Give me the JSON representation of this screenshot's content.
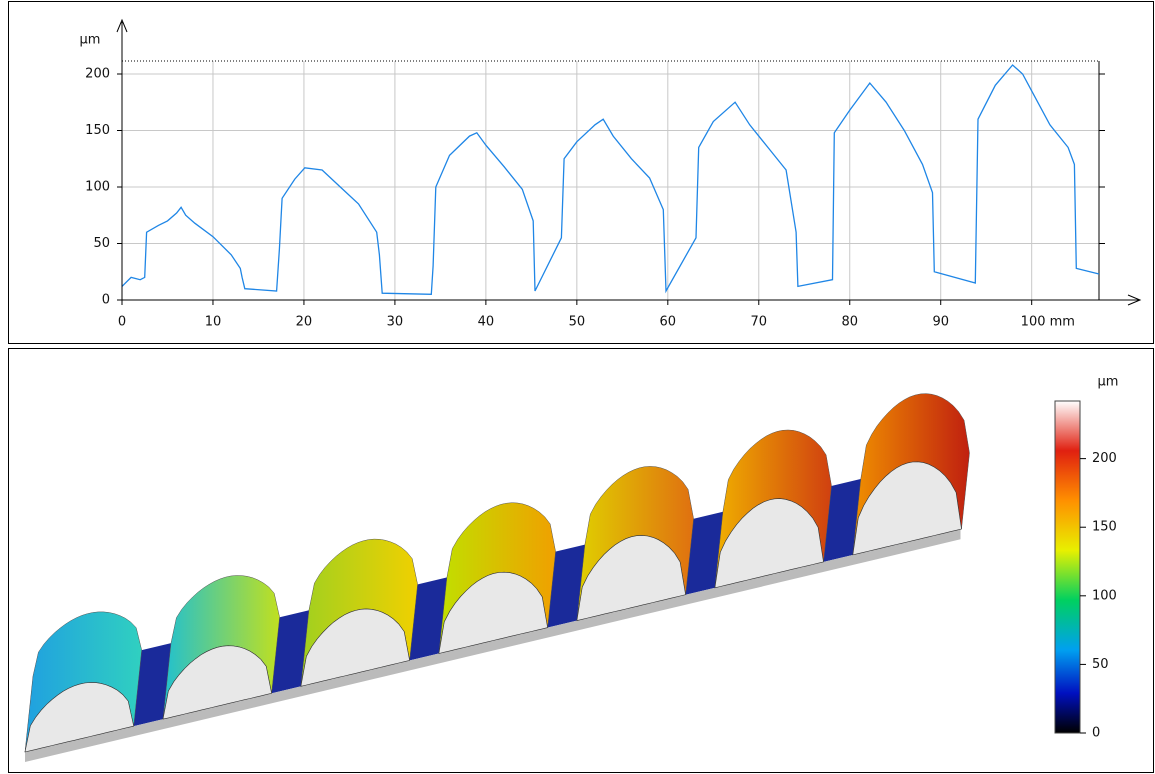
{
  "chart_data": [
    {
      "type": "line",
      "y_label": "µm",
      "color": "#1f86e6",
      "x": [
        0,
        1,
        2,
        2.5,
        2.7,
        4,
        5,
        6,
        6.5,
        7,
        8,
        10,
        12,
        13,
        13.2,
        13.5,
        17,
        17.3,
        17.6,
        19,
        20.1,
        22,
        24,
        26,
        28,
        28.3,
        28.6,
        34,
        34.2,
        34.5,
        36,
        38.2,
        39,
        40,
        42,
        44,
        45.2,
        45.4,
        48.3,
        48.6,
        50,
        52,
        52.9,
        54,
        56,
        58,
        59.5,
        59.8,
        63.1,
        63.4,
        65,
        67.4,
        69,
        71,
        73,
        74.1,
        74.3,
        78.1,
        78.3,
        80,
        82.2,
        84,
        86,
        88,
        89.1,
        89.3,
        93.8,
        94.1,
        96,
        97.9,
        99,
        100,
        102,
        104,
        104.7,
        104.9,
        107.4
      ],
      "values": [
        12,
        20,
        18,
        20,
        60,
        66,
        70,
        77,
        82,
        75,
        68,
        56,
        40,
        28,
        20,
        10,
        8,
        45,
        90,
        107,
        117,
        115,
        100,
        85,
        60,
        40,
        6,
        5,
        30,
        100,
        128,
        145,
        148,
        137,
        118,
        98,
        70,
        8,
        55,
        125,
        140,
        155,
        160,
        145,
        125,
        108,
        80,
        8,
        55,
        135,
        158,
        175,
        155,
        135,
        115,
        60,
        12,
        18,
        148,
        168,
        192,
        175,
        150,
        120,
        95,
        25,
        15,
        160,
        190,
        208,
        200,
        185,
        155,
        135,
        120,
        28,
        23
      ],
      "xlim": [
        0,
        107.4
      ],
      "ylim": [
        0,
        211.5
      ],
      "xticks": [
        0,
        10,
        20,
        30,
        40,
        50,
        60,
        70,
        80,
        90,
        {
          "value": 100,
          "label": "100 mm"
        }
      ],
      "yticks": [
        0,
        50,
        100,
        150,
        200
      ],
      "grid": true
    },
    {
      "type": "surface",
      "colorbar": {
        "label": "µm",
        "lim": [
          0,
          242
        ],
        "ticks": [
          0,
          50,
          100,
          150,
          200
        ]
      }
    }
  ]
}
